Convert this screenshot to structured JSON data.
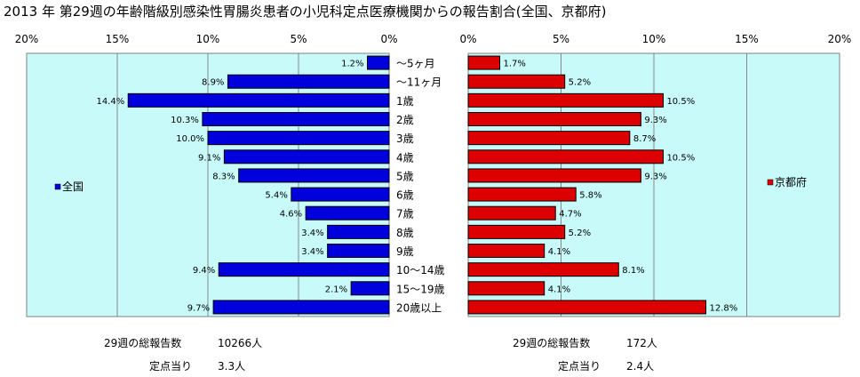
{
  "title": "2013 年 第29週の年齢階級別感染性胃腸炎患者の小児科定点医療機関からの報告割合(全国、京都府)",
  "colors": {
    "national": "#0000dd",
    "kyoto": "#dd0000",
    "plot_bg": "#c8fafa",
    "grid": "#888888"
  },
  "chart_data": {
    "type": "bar",
    "categories": [
      "〜5ヶ月",
      "〜11ヶ月",
      "1歳",
      "2歳",
      "3歳",
      "4歳",
      "5歳",
      "6歳",
      "7歳",
      "8歳",
      "9歳",
      "10〜14歳",
      "15〜19歳",
      "20歳以上"
    ],
    "xlim": [
      0,
      20
    ],
    "ticks": [
      "0%",
      "5%",
      "10%",
      "15%",
      "20%"
    ],
    "series": [
      {
        "name": "全国",
        "values": [
          1.2,
          8.9,
          14.4,
          10.3,
          10.0,
          9.1,
          8.3,
          5.4,
          4.6,
          3.4,
          3.4,
          9.4,
          2.1,
          9.7
        ],
        "labels": [
          "1.2%",
          "8.9%",
          "14.4%",
          "10.3%",
          "10.0%",
          "9.1%",
          "8.3%",
          "5.4%",
          "4.6%",
          "3.4%",
          "3.4%",
          "9.4%",
          "2.1%",
          "9.7%"
        ]
      },
      {
        "name": "京都府",
        "values": [
          1.7,
          5.2,
          10.5,
          9.3,
          8.7,
          10.5,
          9.3,
          5.8,
          4.7,
          5.2,
          4.1,
          8.1,
          4.1,
          12.8
        ],
        "labels": [
          "1.7%",
          "5.2%",
          "10.5%",
          "9.3%",
          "8.7%",
          "10.5%",
          "9.3%",
          "5.8%",
          "4.7%",
          "5.2%",
          "4.1%",
          "8.1%",
          "4.1%",
          "12.8%"
        ]
      }
    ],
    "grid": true,
    "legend": "inside-outer-edge"
  },
  "summary": {
    "national": {
      "total_label": "29週の総報告数",
      "total_value": "10266人",
      "per_label": "定点当り",
      "per_value": "3.3人"
    },
    "kyoto": {
      "total_label": "29週の総報告数",
      "total_value": "172人",
      "per_label": "定点当り",
      "per_value": "2.4人"
    }
  }
}
